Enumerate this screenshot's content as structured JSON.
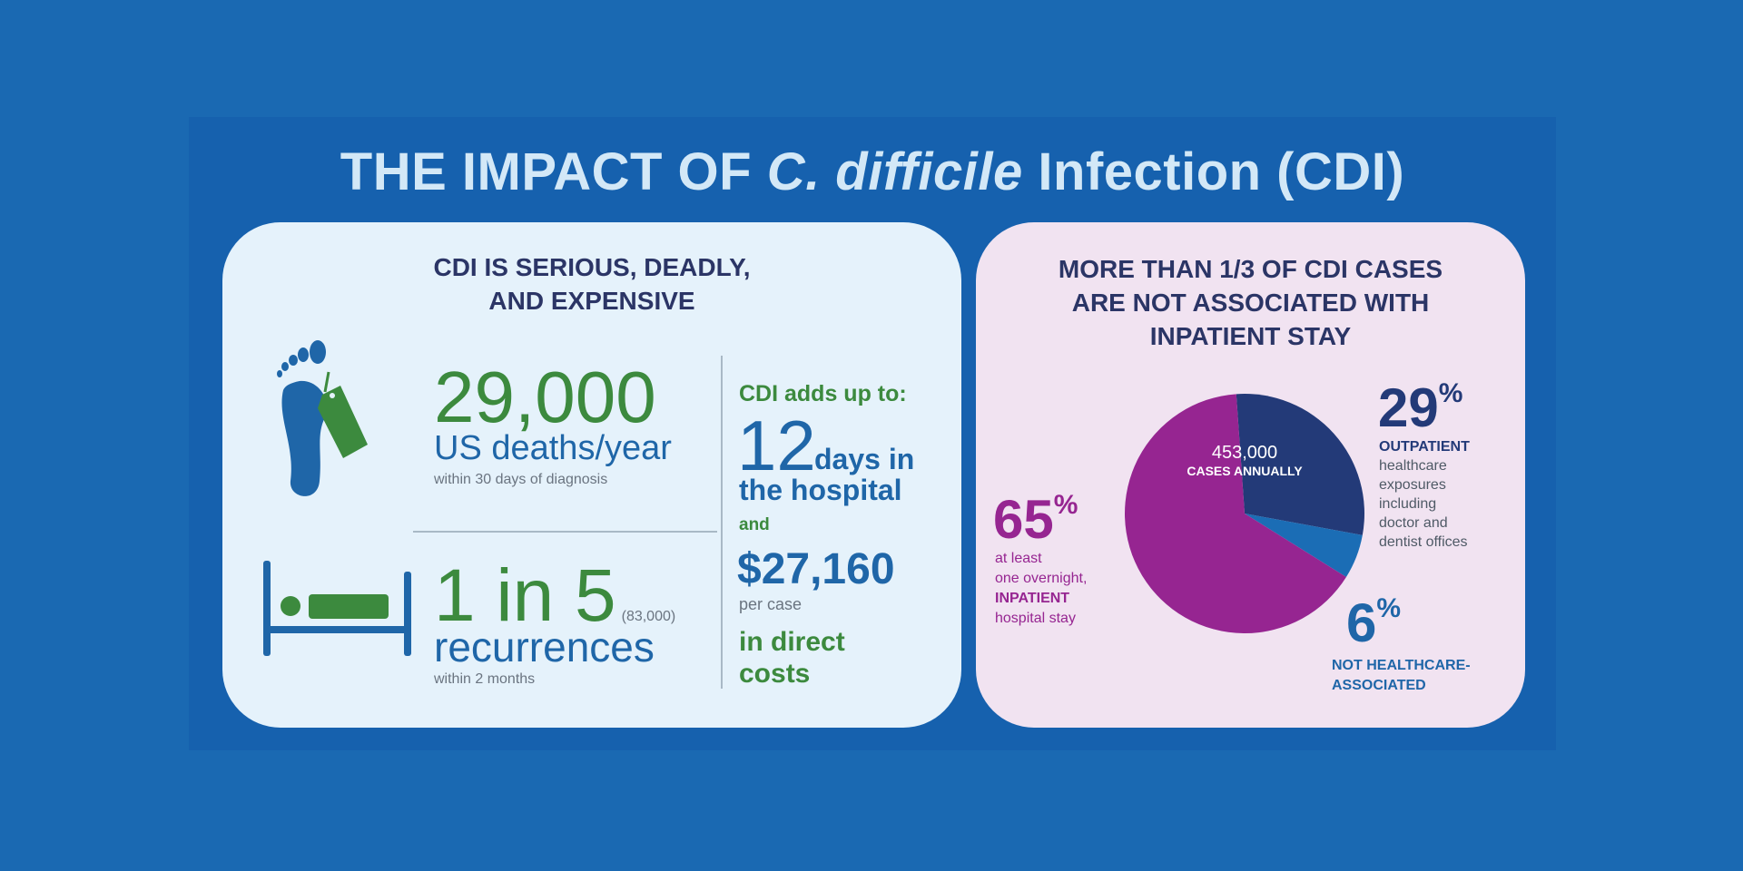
{
  "title": {
    "prefix": "THE IMPACT OF ",
    "organism": "C. difficile",
    "suffix": " Infection (CDI)"
  },
  "left_card": {
    "heading_line1": "CDI IS SERIOUS, DEADLY,",
    "heading_line2": "AND EXPENSIVE",
    "deaths": {
      "value": "29,000",
      "label": "US deaths/year",
      "note": "within 30 days of diagnosis",
      "icon": "foot-with-toe-tag-icon"
    },
    "recurrence": {
      "value": "1 in 5",
      "count": "(83,000)",
      "label": "recurrences",
      "note": "within 2 months",
      "icon": "hospital-bed-icon"
    },
    "costs": {
      "intro": "CDI adds up to:",
      "days": "12",
      "days_label1": "days in",
      "days_label2": "the hospital",
      "and": "and",
      "amount": "$27,160",
      "per_case": "per case",
      "direct1": "in direct",
      "direct2": "costs"
    }
  },
  "right_card": {
    "heading_line1": "MORE THAN 1/3 OF CDI CASES",
    "heading_line2": "ARE NOT ASSOCIATED WITH",
    "heading_line3": "INPATIENT STAY",
    "total": "453,000",
    "total_label": "CASES ANNUALLY",
    "outpatient": {
      "value": "29",
      "pct": "%",
      "title": "OUTPATIENT",
      "lines": [
        "healthcare",
        "exposures",
        "including",
        "doctor and",
        "dentist offices"
      ]
    },
    "inpatient": {
      "value": "65",
      "pct": "%",
      "lines": [
        "at least",
        "one overnight,"
      ],
      "title": "INPATIENT",
      "line_after": "hospital stay"
    },
    "not_hc": {
      "value": "6",
      "pct": "%",
      "line1": "NOT HEALTHCARE-",
      "line2": "ASSOCIATED"
    }
  },
  "chart_data": {
    "type": "pie",
    "categories": [
      "OUTPATIENT",
      "NOT HEALTHCARE-ASSOCIATED",
      "INPATIENT"
    ],
    "values": [
      29,
      6,
      65
    ],
    "colors": [
      "#233a78",
      "#1b6db5",
      "#962591"
    ]
  }
}
